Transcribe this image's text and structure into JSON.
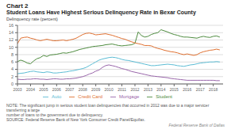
{
  "chart_data": {
    "type": "line",
    "title": "Chart 2",
    "subtitle": "Student Loans Have Highest Serious Delinquency Rate in Bexar County",
    "ylabel": "Delinquency rate (percent)",
    "annotations": [
      "NOTE: The significant jump in serious student loan delinquencies that occurred in 2012 was due to a major servicer transferring a large",
      "number of loans to the government due to delinquency.",
      "SOURCE: Federal Reserve Bank of New York Consumer Credit Panel/Equifax.",
      "Federal Reserve Bank of Dallas"
    ],
    "x": [
      2003.0,
      2003.25,
      2003.5,
      2003.75,
      2004.0,
      2004.25,
      2004.5,
      2004.75,
      2005.0,
      2005.25,
      2005.5,
      2005.75,
      2006.0,
      2006.25,
      2006.5,
      2006.75,
      2007.0,
      2007.25,
      2007.5,
      2007.75,
      2008.0,
      2008.25,
      2008.5,
      2008.75,
      2009.0,
      2009.25,
      2009.5,
      2009.75,
      2010.0,
      2010.25,
      2010.5,
      2010.75,
      2011.0,
      2011.25,
      2011.5,
      2011.75,
      2012.0,
      2012.25,
      2012.5,
      2012.75,
      2013.0,
      2013.25,
      2013.5,
      2013.75,
      2014.0,
      2014.25,
      2014.5,
      2014.75,
      2015.0,
      2015.25,
      2015.5,
      2015.75,
      2016.0,
      2016.25,
      2016.5,
      2016.75,
      2017.0,
      2017.25,
      2017.5,
      2017.75,
      2018.0,
      2018.25,
      2018.5
    ],
    "series": [
      {
        "name": "Student",
        "color": "#4d8b3e",
        "values": [
          6.1,
          6.5,
          6.2,
          5.7,
          5.5,
          6.3,
          6.9,
          7.2,
          7.8,
          7.5,
          7.9,
          8.0,
          8.1,
          8.3,
          8.5,
          8.4,
          8.6,
          8.8,
          9.1,
          9.4,
          9.6,
          9.8,
          10.0,
          10.2,
          10.3,
          10.4,
          10.5,
          10.7,
          10.8,
          10.9,
          10.7,
          10.5,
          10.4,
          10.5,
          10.6,
          10.7,
          11.1,
          14.2,
          13.2,
          12.8,
          13.0,
          13.5,
          13.8,
          14.0,
          14.8,
          14.5,
          14.2,
          13.8,
          13.5,
          13.3,
          13.0,
          12.8,
          12.8,
          12.7,
          12.6,
          12.5,
          12.8,
          13.0,
          12.8,
          12.7,
          13.0,
          13.1,
          12.8
        ]
      },
      {
        "name": "Credit Card",
        "color": "#e07030",
        "values": [
          11.0,
          12.5,
          12.7,
          12.8,
          12.5,
          12.3,
          12.0,
          11.8,
          12.0,
          12.2,
          12.0,
          11.8,
          11.8,
          11.9,
          12.0,
          11.8,
          12.0,
          12.2,
          12.5,
          13.0,
          13.5,
          13.8,
          13.9,
          13.7,
          13.4,
          13.5,
          13.6,
          13.7,
          13.5,
          13.3,
          13.0,
          12.7,
          12.4,
          12.2,
          11.8,
          11.5,
          11.2,
          11.0,
          10.8,
          10.5,
          10.5,
          10.4,
          10.0,
          9.7,
          9.5,
          9.2,
          9.0,
          8.8,
          8.7,
          8.5,
          8.2,
          8.0,
          8.2,
          8.0,
          7.8,
          8.0,
          8.5,
          8.8,
          9.0,
          9.2,
          9.3,
          9.5,
          9.3
        ]
      },
      {
        "name": "Auto",
        "color": "#5bbcd4",
        "values": [
          2.8,
          2.9,
          3.0,
          3.2,
          3.4,
          3.5,
          3.3,
          3.2,
          3.1,
          3.3,
          3.2,
          3.0,
          3.0,
          3.1,
          3.2,
          3.3,
          3.5,
          3.6,
          3.8,
          4.0,
          4.2,
          4.5,
          5.0,
          5.5,
          6.0,
          6.5,
          6.8,
          7.0,
          7.2,
          7.3,
          7.2,
          7.0,
          6.7,
          6.5,
          6.4,
          6.2,
          6.0,
          5.8,
          5.6,
          5.4,
          5.2,
          5.0,
          5.0,
          5.1,
          5.2,
          5.3,
          5.4,
          5.3,
          5.2,
          5.0,
          4.9,
          4.8,
          5.0,
          5.2,
          5.3,
          5.5,
          5.7,
          5.8,
          5.9,
          6.0,
          6.0,
          6.1,
          6.0
        ]
      },
      {
        "name": "Mortgage",
        "color": "#9966aa",
        "values": [
          1.3,
          1.2,
          1.2,
          1.3,
          1.3,
          1.4,
          1.4,
          1.3,
          1.3,
          1.2,
          1.3,
          1.4,
          1.4,
          1.3,
          1.3,
          1.4,
          1.4,
          1.5,
          1.6,
          1.8,
          2.0,
          2.3,
          2.7,
          3.0,
          3.5,
          3.8,
          4.5,
          5.0,
          5.2,
          5.0,
          4.8,
          4.5,
          4.2,
          4.0,
          3.7,
          3.4,
          3.2,
          3.0,
          2.8,
          2.6,
          2.4,
          2.2,
          2.1,
          2.0,
          1.9,
          1.8,
          1.7,
          1.5,
          1.4,
          1.3,
          1.2,
          1.1,
          1.0,
          1.0,
          1.0,
          1.0,
          1.0,
          1.0,
          1.0,
          1.0,
          1.0,
          0.9,
          0.9
        ]
      }
    ],
    "xlim": [
      2003,
      2018.75
    ],
    "xticks": [
      2003,
      2004,
      2005,
      2006,
      2007,
      2008,
      2009,
      2010,
      2011,
      2012,
      2013,
      2014,
      2015,
      2016,
      2017,
      2018
    ],
    "ylim": [
      0,
      16
    ],
    "yticks": [
      0,
      2,
      4,
      6,
      8,
      10,
      12,
      14,
      16
    ],
    "grid": true,
    "legend": "bottom"
  }
}
